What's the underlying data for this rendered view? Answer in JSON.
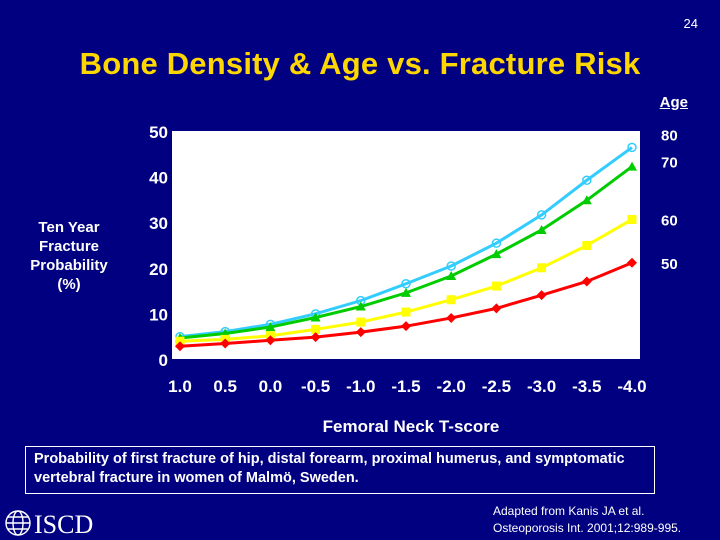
{
  "slide_number": "24",
  "title": "Bone Density & Age vs. Fracture Risk",
  "legend_title": "Age",
  "y_axis_label_lines": [
    "Ten Year",
    "Fracture",
    "Probability",
    "(%)"
  ],
  "caption": "Probability of first fracture of hip, distal forearm, proximal humerus, and symptomatic vertebral fracture in women of Malmö, Sweden.",
  "source_lines": [
    "Adapted from Kanis JA et al.",
    "Osteoporosis Int. 2001;12:989-995."
  ],
  "logo_text": "ISCD",
  "colors": {
    "background": "#000080",
    "title": "#ffd700",
    "plot_bg": "#ffffff"
  },
  "chart_data": {
    "type": "line",
    "title": "",
    "xlabel": "Femoral Neck T-score",
    "ylabel": "Ten Year Fracture Probability (%)",
    "categories": [
      "1.0",
      "0.5",
      "0.0",
      "-0.5",
      "-1.0",
      "-1.5",
      "-2.0",
      "-2.5",
      "-3.0",
      "-3.5",
      "-4.0"
    ],
    "y_ticks": [
      "0",
      "10",
      "20",
      "30",
      "40",
      "50"
    ],
    "ylim": [
      0,
      50
    ],
    "grid": false,
    "legend_placement": "right, labels at line ends",
    "series": [
      {
        "name": "80",
        "color": "#33ccff",
        "marker": "circle-open",
        "values": [
          4.9,
          6.0,
          7.6,
          9.9,
          12.8,
          16.5,
          20.4,
          25.4,
          31.6,
          39.2,
          46.4
        ]
      },
      {
        "name": "70",
        "color": "#00cc00",
        "marker": "triangle",
        "values": [
          4.6,
          5.6,
          7.0,
          9.1,
          11.5,
          14.5,
          18.2,
          23.0,
          28.3,
          34.8,
          42.2
        ]
      },
      {
        "name": "60",
        "color": "#ffff00",
        "marker": "square",
        "values": [
          3.9,
          4.3,
          5.1,
          6.5,
          8.1,
          10.3,
          13.0,
          16.0,
          20.0,
          24.9,
          30.6
        ]
      },
      {
        "name": "50",
        "color": "#ff0000",
        "marker": "diamond",
        "values": [
          2.8,
          3.4,
          4.1,
          4.8,
          5.9,
          7.2,
          9.0,
          11.1,
          14.0,
          17.0,
          21.1
        ]
      }
    ]
  }
}
